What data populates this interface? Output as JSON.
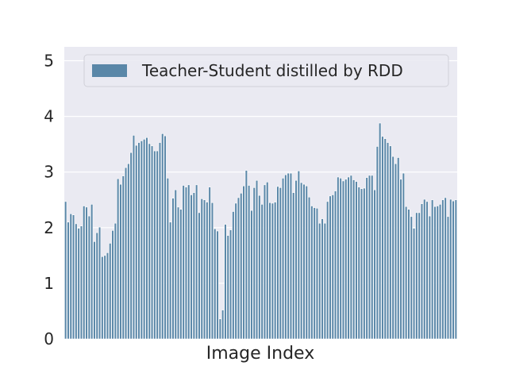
{
  "chart_data": {
    "type": "bar",
    "title": "",
    "xlabel": "Image Index",
    "ylabel": "",
    "ylim": [
      0,
      5.25
    ],
    "yticks": [
      0,
      1,
      2,
      3,
      4,
      5
    ],
    "grid": true,
    "legend_position": "top-right",
    "series": [
      {
        "name": "Teacher-Student distilled by RDD",
        "color": "#5a87a8",
        "values": [
          2.47,
          2.1,
          2.25,
          2.23,
          2.07,
          1.99,
          2.03,
          2.39,
          2.37,
          2.21,
          2.42,
          1.75,
          1.91,
          2.01,
          1.48,
          1.5,
          1.55,
          1.72,
          1.95,
          2.08,
          2.88,
          2.78,
          2.93,
          3.08,
          3.15,
          3.35,
          3.66,
          3.48,
          3.53,
          3.56,
          3.59,
          3.62,
          3.51,
          3.47,
          3.38,
          3.38,
          3.53,
          3.69,
          3.65,
          2.89,
          2.1,
          2.53,
          2.68,
          2.37,
          2.33,
          2.76,
          2.73,
          2.77,
          2.59,
          2.63,
          2.77,
          2.27,
          2.52,
          2.5,
          2.46,
          2.73,
          2.45,
          1.98,
          1.94,
          0.36,
          0.52,
          2.06,
          1.86,
          1.96,
          2.29,
          2.44,
          2.54,
          2.62,
          2.75,
          3.03,
          2.76,
          2.31,
          2.72,
          2.85,
          2.58,
          2.42,
          2.77,
          2.82,
          2.45,
          2.44,
          2.46,
          2.74,
          2.72,
          2.89,
          2.95,
          2.98,
          2.98,
          2.63,
          2.85,
          3.02,
          2.81,
          2.78,
          2.75,
          2.55,
          2.39,
          2.36,
          2.35,
          2.08,
          2.16,
          2.08,
          2.47,
          2.57,
          2.59,
          2.66,
          2.91,
          2.89,
          2.84,
          2.87,
          2.91,
          2.94,
          2.86,
          2.83,
          2.73,
          2.7,
          2.71,
          2.9,
          2.94,
          2.94,
          2.68,
          3.46,
          3.88,
          3.64,
          3.6,
          3.53,
          3.47,
          3.28,
          3.15,
          3.26,
          2.87,
          2.98,
          2.38,
          2.33,
          2.2,
          1.99,
          2.27,
          2.27,
          2.43,
          2.51,
          2.47,
          2.21,
          2.5,
          2.38,
          2.39,
          2.42,
          2.5,
          2.54,
          2.2,
          2.51,
          2.48,
          2.5
        ]
      }
    ]
  }
}
